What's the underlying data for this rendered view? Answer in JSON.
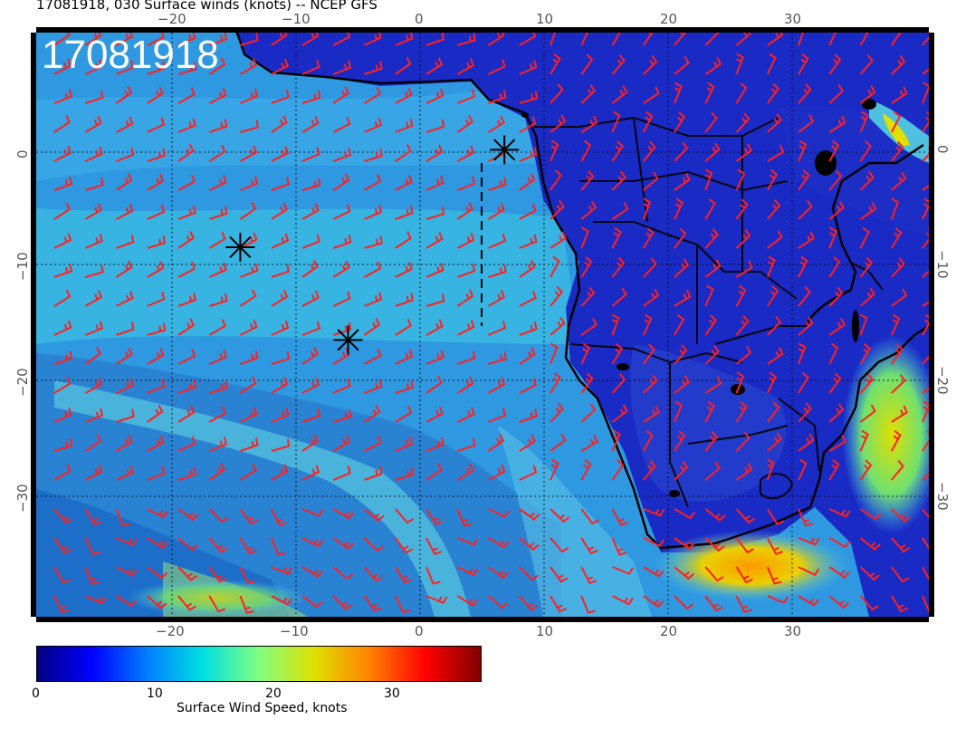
{
  "title": "17081918, 030 Surface winds (knots) -- NCEP GFS",
  "date_stamp": "17081918",
  "lon_top_ticks": [
    "−20",
    "−10",
    "0",
    "10",
    "20",
    "30"
  ],
  "lon_bottom_ticks": [
    "−20",
    "−10",
    "0",
    "10",
    "20",
    "30"
  ],
  "lat_left_ticks": [
    "0",
    "−10",
    "−20",
    "−30"
  ],
  "lat_right_ticks": [
    "0",
    "−10",
    "−20",
    "−30"
  ],
  "colorbar": {
    "label": "Surface Wind Speed, knots",
    "ticks": [
      "0",
      "10",
      "20",
      "30"
    ],
    "range": [
      0,
      38
    ],
    "colormap": [
      "#00007f",
      "#0000ff",
      "#0080ff",
      "#00e0e0",
      "#80ff80",
      "#e0e000",
      "#ff8000",
      "#ff0000",
      "#7f0000"
    ]
  },
  "colors": {
    "wind_barb": "#ff2020",
    "coastline": "#000000",
    "ocean_base": "#2a8ad8",
    "land_base": "#1a28c0",
    "grid": "#000000"
  },
  "markers": [
    {
      "name": "marker-1",
      "lon": 6.8,
      "lat": 0.2
    },
    {
      "name": "marker-2",
      "lon": -14.5,
      "lat": -8.2
    },
    {
      "name": "marker-3",
      "lon": -5.8,
      "lat": -16.2
    }
  ]
}
